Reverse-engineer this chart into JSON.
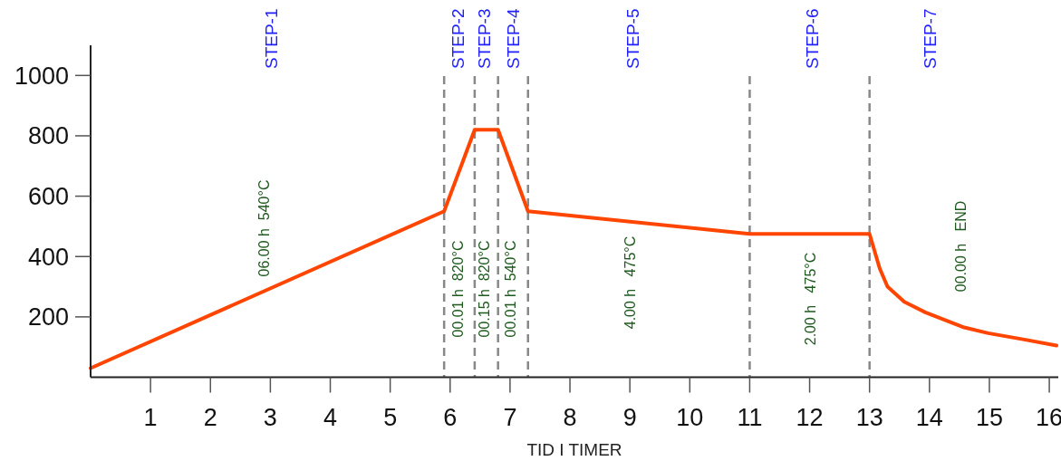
{
  "chart_data": {
    "type": "line",
    "xlabel": "TID I TIMER",
    "x": [
      0,
      5.9,
      6.41,
      6.8,
      7.3,
      11,
      13,
      13.17,
      13.3,
      13.58,
      13.93,
      14.58,
      14.98,
      15.58,
      16.12
    ],
    "series": [
      {
        "color": "#ff4500",
        "values": [
          30,
          550,
          820,
          820,
          550,
          475,
          475,
          360,
          300,
          250,
          215,
          165,
          146,
          125,
          105
        ]
      }
    ],
    "xlim": [
      0,
      16.15
    ],
    "xticks": [
      1,
      2,
      3,
      4,
      5,
      6,
      7,
      8,
      9,
      10,
      11,
      12,
      13,
      14,
      15,
      16
    ],
    "ylim": [
      0,
      1100
    ],
    "yticks": [
      200,
      400,
      600,
      800,
      1000
    ],
    "grid": false,
    "marker": "none",
    "line_style": "solid",
    "ref_lines": [
      {
        "axis": "x",
        "value": 5.9,
        "color": "#888888",
        "line_style": "dashed"
      },
      {
        "axis": "x",
        "value": 6.41,
        "color": "#888888",
        "line_style": "dashed"
      },
      {
        "axis": "x",
        "value": 6.8,
        "color": "#888888",
        "line_style": "dashed"
      },
      {
        "axis": "x",
        "value": 7.3,
        "color": "#888888",
        "line_style": "dashed"
      },
      {
        "axis": "x",
        "value": 11,
        "color": "#888888",
        "line_style": "dashed"
      },
      {
        "axis": "x",
        "value": 13,
        "color": "#888888",
        "line_style": "dashed"
      }
    ],
    "annotations": [
      "STEP-1",
      "STEP-2",
      "STEP-3",
      "STEP-4",
      "STEP-5",
      "STEP-6",
      "STEP-7",
      "06.00 h  540°C",
      "00.01 h  820°C",
      "00.15 h  820°C",
      "00.01 h  540°C",
      "4.00 h   475°C",
      "2.00 h   475°C",
      "00.00 h   END"
    ]
  }
}
